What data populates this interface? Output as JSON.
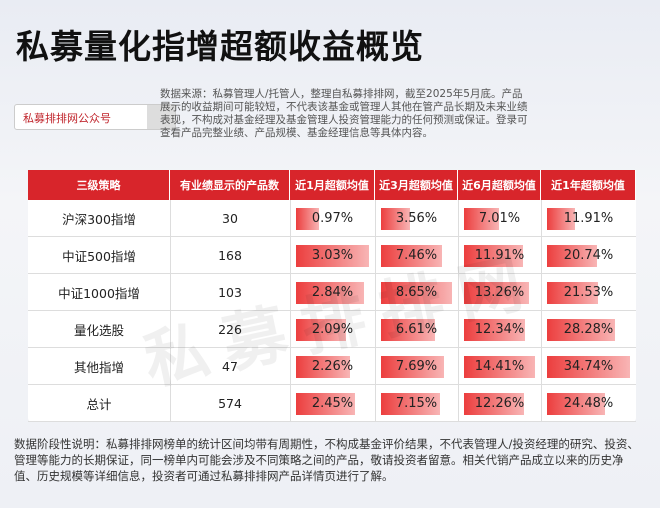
{
  "header": {
    "title": "私募量化指增超额收益概览",
    "search_placeholder": "私募排排网公众号",
    "note": "数据来源：私募管理人/托管人，整理自私募排排网，截至2025年5月底。产品展示的收益期间可能较短，不代表该基金或管理人其他在管产品长期及未来业绩表现，不构成对基金经理及基金管理人投资管理能力的任何预测或保证。登录可查看产品完整业绩、产品规模、基金经理信息等具体内容。"
  },
  "watermark": "私募排排网",
  "table": {
    "columns": [
      "三级策略",
      "有业绩显示的产品数",
      "近1月超额均值",
      "近3月超额均值",
      "近6月超额均值",
      "近1年超额均值"
    ],
    "rows": [
      {
        "strategy": "沪深300指增",
        "count": 30,
        "values": [
          0.97,
          3.56,
          7.01,
          11.91
        ],
        "value_labels": [
          "0.97%",
          "3.56%",
          "7.01%",
          "11.91%"
        ]
      },
      {
        "strategy": "中证500指增",
        "count": 168,
        "values": [
          3.03,
          7.46,
          11.91,
          20.74
        ],
        "value_labels": [
          "3.03%",
          "7.46%",
          "11.91%",
          "20.74%"
        ]
      },
      {
        "strategy": "中证1000指增",
        "count": 103,
        "values": [
          2.84,
          8.65,
          13.26,
          21.53
        ],
        "value_labels": [
          "2.84%",
          "8.65%",
          "13.26%",
          "21.53%"
        ]
      },
      {
        "strategy": "量化选股",
        "count": 226,
        "values": [
          2.09,
          6.61,
          12.34,
          28.28
        ],
        "value_labels": [
          "2.09%",
          "6.61%",
          "12.34%",
          "28.28%"
        ]
      },
      {
        "strategy": "其他指增",
        "count": 47,
        "values": [
          2.26,
          7.69,
          14.41,
          34.74
        ],
        "value_labels": [
          "2.26%",
          "7.69%",
          "14.41%",
          "34.74%"
        ]
      },
      {
        "strategy": "总计",
        "count": 574,
        "values": [
          2.45,
          7.15,
          12.26,
          24.48
        ],
        "value_labels": [
          "2.45%",
          "7.15%",
          "12.26%",
          "24.48%"
        ]
      }
    ]
  },
  "footer": "数据阶段性说明：私募排排网榜单的统计区间均带有周期性，不构成基金评价结果，不代表管理人/投资经理的研究、投资、管理等能力的长期保证，同一榜单内可能会涉及不同策略之间的产品，敬请投资者留意。相关代销产品成立以来的历史净值、历史规模等详细信息，投资者可通过私募排排网产品详情页进行了解。"
}
